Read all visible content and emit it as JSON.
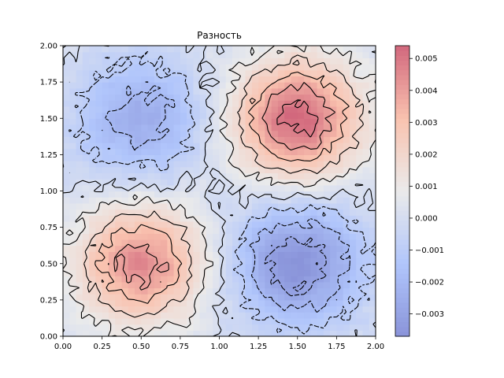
{
  "chart_data": {
    "type": "contour",
    "title": "Разность",
    "xlabel": "",
    "ylabel": "",
    "xlim": [
      0.0,
      2.0
    ],
    "ylim": [
      0.0,
      2.0
    ],
    "x_ticks": [
      "0.00",
      "0.25",
      "0.50",
      "0.75",
      "1.00",
      "1.25",
      "1.50",
      "1.75",
      "2.00"
    ],
    "y_ticks": [
      "0.00",
      "0.25",
      "0.50",
      "0.75",
      "1.00",
      "1.25",
      "1.50",
      "1.75",
      "2.00"
    ],
    "colormap": "coolwarm",
    "colorbar": {
      "range": [
        -0.0037,
        0.0054
      ],
      "ticks": [
        "−0.003",
        "−0.002",
        "−0.001",
        "0.000",
        "0.001",
        "0.002",
        "0.003",
        "0.004",
        "0.005"
      ],
      "tick_values": [
        -0.003,
        -0.002,
        -0.001,
        0.0,
        0.001,
        0.002,
        0.003,
        0.004,
        0.005
      ]
    },
    "field": {
      "description_free": true,
      "peaks": [
        {
          "x": 1.5,
          "y": 1.5,
          "value": 0.0054
        },
        {
          "x": 0.5,
          "y": 0.5,
          "value": 0.0045
        }
      ],
      "troughs": [
        {
          "x": 0.5,
          "y": 1.5,
          "value": -0.0025
        },
        {
          "x": 1.5,
          "y": 0.5,
          "value": -0.0037
        }
      ]
    },
    "contour_lines": "solid for positive levels, dashed for negative levels",
    "grid": false
  }
}
